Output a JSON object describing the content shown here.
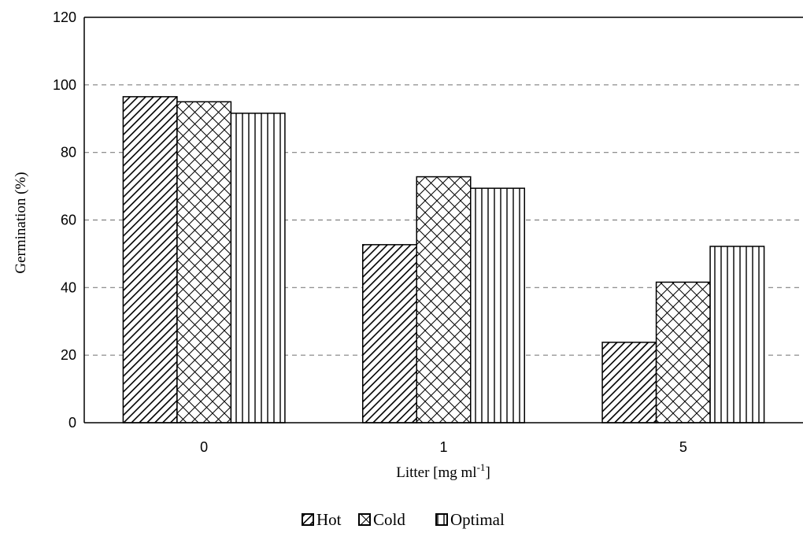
{
  "chart_data": {
    "type": "bar",
    "title": "",
    "xlabel": "Litter [mg ml",
    "xlabel_sup": "-1",
    "xlabel_suffix": "]",
    "ylabel": "Germination (%)",
    "ylim": [
      0,
      120
    ],
    "yticks": [
      0,
      20,
      40,
      60,
      80,
      100,
      120
    ],
    "grid": "horizontal dashed",
    "legend_position": "bottom-center",
    "categories": [
      "0",
      "1",
      "5"
    ],
    "series": [
      {
        "name": "Hot",
        "pattern": "diagonal-hatch",
        "values": [
          96.5,
          52.7,
          23.8
        ]
      },
      {
        "name": "Cold",
        "pattern": "cross-hatch",
        "values": [
          95.0,
          72.8,
          41.6
        ]
      },
      {
        "name": "Optimal",
        "pattern": "vertical-lines",
        "values": [
          91.6,
          69.4,
          52.2
        ]
      }
    ],
    "colors": {
      "bar_outline": "#000000",
      "grid": "#808080",
      "background": "#ffffff"
    }
  }
}
